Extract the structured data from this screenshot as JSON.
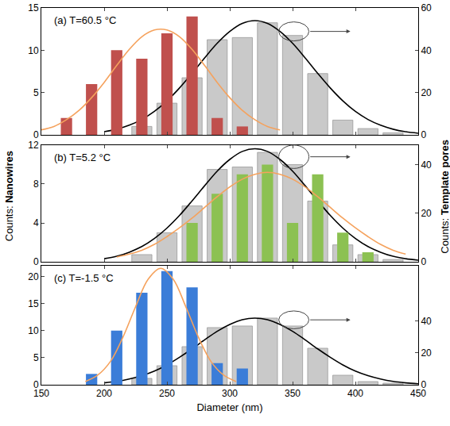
{
  "chart_data": {
    "type": "bar",
    "xlabel": "Diameter (nm)",
    "ylabel": "Counts: Nanowires",
    "y2label": "Counts: Template pores",
    "xlim": [
      150,
      450
    ],
    "xticks": [
      150,
      200,
      250,
      300,
      350,
      400,
      450
    ],
    "panels": [
      {
        "title": "(a) T=60.5 °C",
        "ylim": [
          0,
          15
        ],
        "yticks": [
          0,
          5,
          10,
          15
        ],
        "y2lim": [
          0,
          60
        ],
        "y2ticks": [
          0,
          20,
          40,
          60
        ],
        "series": [
          {
            "type": "bar",
            "axis": "y2",
            "color": "#c9c9c9",
            "x": [
              230,
              250,
              270,
              290,
              310,
              330,
              350,
              370,
              390,
              410,
              430
            ],
            "values": [
              4,
              15,
              27,
              45,
              46,
              53,
              47,
              29,
              7,
              3,
              1
            ]
          },
          {
            "type": "line",
            "axis": "y2",
            "color": "#000000",
            "x": [
              200,
              210,
              220,
              230,
              240,
              250,
              260,
              270,
              280,
              290,
              300,
              310,
              320,
              330,
              340,
              350,
              360,
              370,
              380,
              390,
              400,
              410,
              420,
              430,
              440,
              450
            ],
            "values": [
              1.5,
              2.7,
              4.6,
              7.3,
              11.1,
              16.1,
              22.2,
              29.1,
              36.4,
              43.3,
              48.9,
              52.7,
              54,
              52.7,
              48.9,
              43.3,
              36.4,
              29.1,
              22.2,
              16.1,
              11.1,
              7.3,
              4.6,
              2.7,
              1.5,
              0.8
            ]
          },
          {
            "type": "bar",
            "color": "#c0504d",
            "x": [
              170,
              190,
              210,
              230,
              250,
              270,
              290,
              310
            ],
            "values": [
              2,
              6,
              10,
              9,
              12,
              14,
              2,
              1
            ]
          },
          {
            "type": "line",
            "color": "#f5a25d",
            "x": [
              150,
              160,
              170,
              180,
              190,
              200,
              210,
              220,
              230,
              240,
              250,
              260,
              270,
              280,
              290,
              300,
              310,
              320,
              330,
              340
            ],
            "values": [
              0.6,
              1.0,
              1.8,
              2.9,
              4.4,
              6.2,
              8.2,
              10.1,
              11.6,
              12.4,
              12.4,
              11.6,
              10.1,
              8.2,
              6.2,
              4.4,
              2.9,
              1.8,
              1.0,
              0.6
            ]
          }
        ]
      },
      {
        "title": "(b) T=5.2 °C",
        "ylim": [
          0,
          12
        ],
        "yticks": [
          0,
          4,
          8,
          12
        ],
        "y2lim": [
          0,
          48
        ],
        "y2ticks": [
          0,
          20,
          40
        ],
        "series": [
          {
            "type": "bar",
            "axis": "y2",
            "color": "#c9c9c9",
            "x": [
              230,
              250,
              270,
              290,
              310,
              330,
              350,
              370,
              390,
              410,
              430
            ],
            "values": [
              3,
              12,
              23,
              38,
              39,
              45,
              40,
              25,
              7,
              3,
              1
            ]
          },
          {
            "type": "line",
            "axis": "y2",
            "color": "#000000",
            "x": [
              200,
              210,
              220,
              230,
              240,
              250,
              260,
              270,
              280,
              290,
              300,
              310,
              320,
              330,
              340,
              350,
              360,
              370,
              380,
              390,
              400,
              410,
              420,
              430,
              440,
              450
            ],
            "values": [
              1.3,
              2.3,
              4.0,
              6.3,
              9.6,
              13.9,
              19.1,
              25.1,
              31.3,
              37.3,
              42.1,
              45.4,
              46.5,
              45.4,
              42.1,
              37.3,
              31.3,
              25.1,
              19.1,
              13.9,
              9.6,
              6.3,
              4.0,
              2.3,
              1.3,
              0.7
            ]
          },
          {
            "type": "bar",
            "color": "#8cc152",
            "x": [
              270,
              290,
              310,
              330,
              350,
              370,
              390,
              410
            ],
            "values": [
              4,
              7,
              9,
              10,
              4,
              9,
              3,
              1
            ]
          },
          {
            "type": "line",
            "color": "#f5a25d",
            "x": [
              210,
              220,
              230,
              240,
              250,
              260,
              270,
              280,
              290,
              300,
              310,
              320,
              330,
              340,
              350,
              360,
              370,
              380,
              390,
              400,
              410,
              420,
              430,
              440
            ],
            "values": [
              0.5,
              0.8,
              1.2,
              1.8,
              2.6,
              3.5,
              4.5,
              5.6,
              6.7,
              7.7,
              8.5,
              9.0,
              9.2,
              9.0,
              8.5,
              7.7,
              6.7,
              5.6,
              4.5,
              3.5,
              2.6,
              1.8,
              1.2,
              0.8
            ]
          }
        ]
      },
      {
        "title": "(c) T=-1.5 °C",
        "ylim": [
          0,
          22
        ],
        "yticks": [
          0,
          5,
          10,
          15,
          20
        ],
        "y2lim": [
          0,
          75
        ],
        "y2ticks": [
          0,
          20,
          40
        ],
        "series": [
          {
            "type": "bar",
            "axis": "y2",
            "color": "#c9c9c9",
            "x": [
              230,
              250,
              270,
              290,
              310,
              330,
              350,
              370,
              390,
              410,
              430
            ],
            "values": [
              4,
              12,
              24,
              36,
              37,
              42,
              37,
              23,
              6,
              2,
              1
            ]
          },
          {
            "type": "line",
            "axis": "y2",
            "color": "#000000",
            "x": [
              200,
              210,
              220,
              230,
              240,
              250,
              260,
              270,
              280,
              290,
              300,
              310,
              320,
              330,
              340,
              350,
              360,
              370,
              380,
              390,
              400,
              410,
              420,
              430,
              440,
              450
            ],
            "values": [
              1.2,
              2.1,
              3.6,
              5.7,
              8.6,
              12.5,
              17.3,
              22.6,
              28.3,
              33.7,
              38.0,
              41.0,
              42,
              41.0,
              38.0,
              33.7,
              28.3,
              22.6,
              17.3,
              12.5,
              8.6,
              5.7,
              3.6,
              2.1,
              1.2,
              0.6
            ]
          },
          {
            "type": "bar",
            "color": "#3b7dd8",
            "x": [
              190,
              210,
              230,
              250,
              270,
              290,
              310
            ],
            "values": [
              2,
              10,
              17,
              21,
              18,
              4,
              3
            ]
          },
          {
            "type": "line",
            "color": "#f5a25d",
            "x": [
              185,
              195,
              205,
              215,
              225,
              235,
              245,
              255,
              265,
              275,
              285,
              295,
              305
            ],
            "values": [
              0.6,
              1.8,
              4.3,
              8.8,
              14.4,
              19.5,
              21.5,
              19.5,
              14.4,
              8.8,
              4.3,
              1.8,
              0.6
            ]
          }
        ]
      }
    ]
  }
}
